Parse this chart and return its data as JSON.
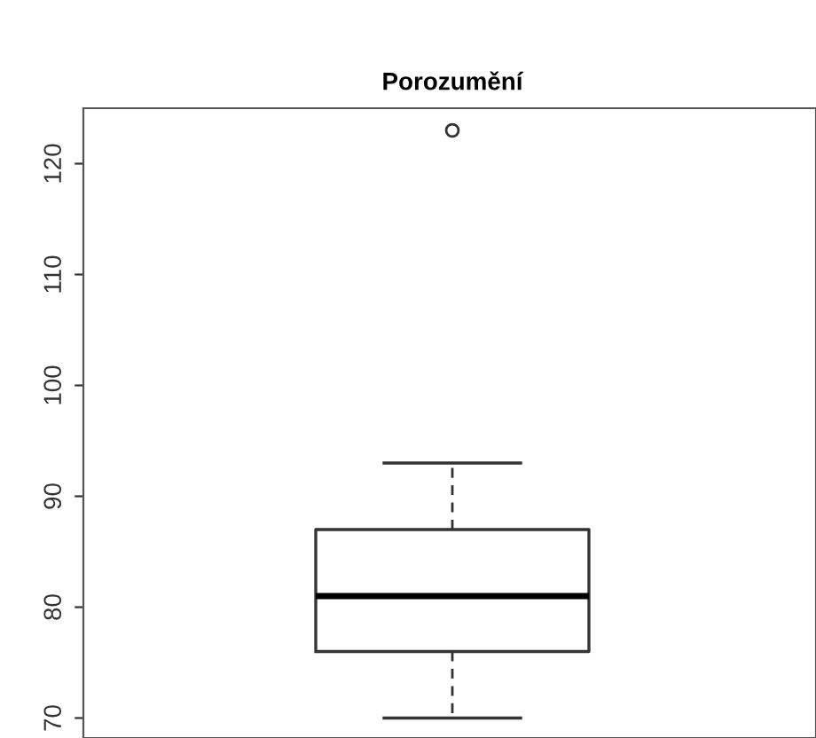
{
  "chart_data": {
    "type": "box",
    "title": "Porozumění",
    "categories": [
      null
    ],
    "boxes": [
      {
        "low": 70,
        "q1": 76,
        "median": 81,
        "q3": 87,
        "high": 93,
        "outliers": [
          123
        ]
      }
    ],
    "ylim": [
      68.2,
      125
    ],
    "yticks": [
      70,
      80,
      90,
      100,
      110,
      120
    ],
    "grid": false,
    "tick_labels": "y"
  }
}
